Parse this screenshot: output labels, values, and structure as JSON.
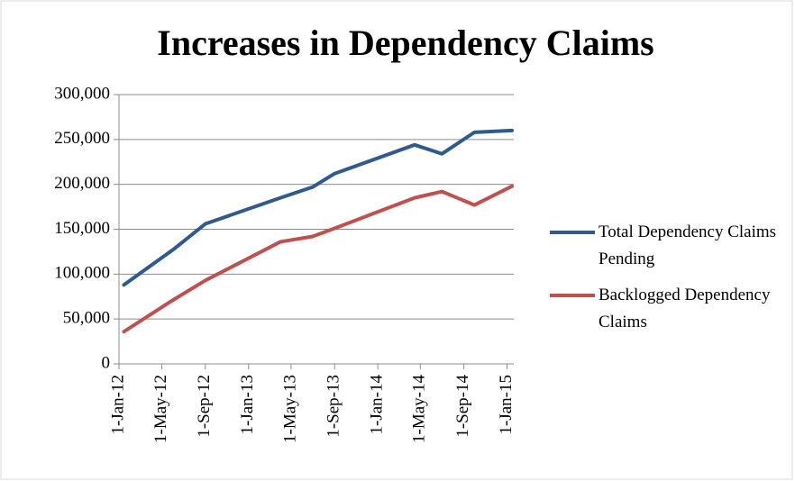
{
  "chart_data": {
    "type": "line",
    "title": "Increases in Dependency Claims",
    "x": [
      "2012-01-15",
      "2012-06-01",
      "2012-09-01",
      "2013-04-01",
      "2013-07-01",
      "2013-09-01",
      "2014-04-15",
      "2014-07-01",
      "2014-10-01",
      "2015-01-15"
    ],
    "series": [
      {
        "name": "Total Dependency Claims Pending",
        "color": "#2e5a8f",
        "values": [
          88000,
          127000,
          156000,
          185000,
          197000,
          212000,
          244000,
          234000,
          258000,
          260000
        ]
      },
      {
        "name": "Backlogged Dependency Claims",
        "color": "#c0504d",
        "values": [
          36000,
          71000,
          93000,
          136000,
          142000,
          151000,
          185000,
          192000,
          177000,
          198000
        ]
      }
    ],
    "xlim": [
      "2012-01-01",
      "2015-01-20"
    ],
    "xticks": [
      {
        "value": "2012-01-01",
        "label": "1-Jan-12"
      },
      {
        "value": "2012-05-01",
        "label": "1-May-12"
      },
      {
        "value": "2012-09-01",
        "label": "1-Sep-12"
      },
      {
        "value": "2013-01-01",
        "label": "1-Jan-13"
      },
      {
        "value": "2013-05-01",
        "label": "1-May-13"
      },
      {
        "value": "2013-09-01",
        "label": "1-Sep-13"
      },
      {
        "value": "2014-01-01",
        "label": "1-Jan-14"
      },
      {
        "value": "2014-05-01",
        "label": "1-May-14"
      },
      {
        "value": "2014-09-01",
        "label": "1-Sep-14"
      },
      {
        "value": "2015-01-01",
        "label": "1-Jan-15"
      }
    ],
    "ylim": [
      0,
      300000
    ],
    "yticks": [
      0,
      {
        "value": 50000,
        "label": "50,000"
      },
      {
        "value": 100000,
        "label": "100,000"
      },
      {
        "value": 150000,
        "label": "150,000"
      },
      {
        "value": 200000,
        "label": "200,000"
      },
      {
        "value": 250000,
        "label": "250,000"
      },
      {
        "value": 300000,
        "label": "300,000"
      }
    ],
    "grid": true,
    "legend": "right"
  }
}
